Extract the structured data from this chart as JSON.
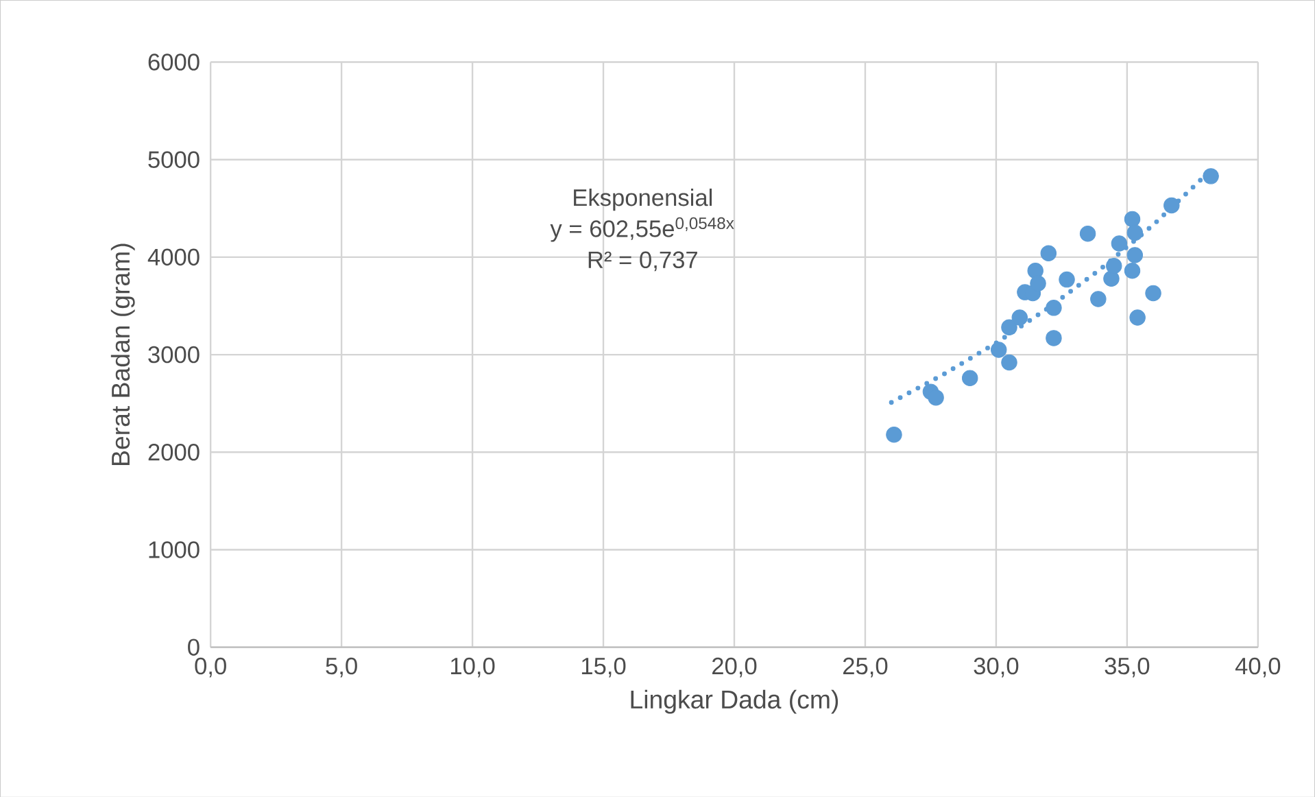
{
  "chart_data": {
    "type": "scatter",
    "xlabel": "Lingkar Dada (cm)",
    "ylabel": "Berat Badan (gram)",
    "xlim": [
      0,
      40
    ],
    "ylim": [
      0,
      6000
    ],
    "xticks": [
      {
        "value": 0,
        "label": "0,0"
      },
      {
        "value": 5,
        "label": "5,0"
      },
      {
        "value": 10,
        "label": "10,0"
      },
      {
        "value": 15,
        "label": "15,0"
      },
      {
        "value": 20,
        "label": "20,0"
      },
      {
        "value": 25,
        "label": "25,0"
      },
      {
        "value": 30,
        "label": "30,0"
      },
      {
        "value": 35,
        "label": "35,0"
      },
      {
        "value": 40,
        "label": "40,0"
      }
    ],
    "yticks": [
      0,
      1000,
      2000,
      3000,
      4000,
      5000,
      6000
    ],
    "grid": true,
    "marker": "circle",
    "annotations": [
      "Eksponensial",
      "y = 602,55e$^{0,0548x}$",
      "R² = 0,737"
    ],
    "series": [
      {
        "color": "#5b9bd5",
        "x": [
          26.1,
          27.5,
          27.7,
          29.0,
          30.1,
          30.5,
          30.5,
          30.9,
          31.1,
          31.4,
          31.5,
          31.6,
          32.0,
          32.2,
          32.2,
          32.7,
          33.5,
          33.9,
          34.4,
          34.5,
          34.7,
          35.2,
          35.3,
          35.3,
          35.2,
          35.4,
          36.0,
          36.7,
          38.2
        ],
        "values": [
          2180,
          2620,
          2560,
          2760,
          3050,
          2920,
          3280,
          3380,
          3640,
          3630,
          3860,
          3730,
          4040,
          3480,
          3170,
          3770,
          4240,
          3570,
          3780,
          3910,
          4140,
          4390,
          4250,
          4020,
          3860,
          3380,
          3630,
          4530,
          4830
        ]
      },
      {
        "type": "line",
        "line_style": "dotted",
        "marker": "none",
        "color": "#5b9bd5",
        "x": [
          26,
          28,
          30,
          32,
          34,
          36,
          38
        ],
        "values": [
          2510,
          2800,
          3120,
          3480,
          3880,
          4330,
          4840
        ]
      }
    ]
  }
}
